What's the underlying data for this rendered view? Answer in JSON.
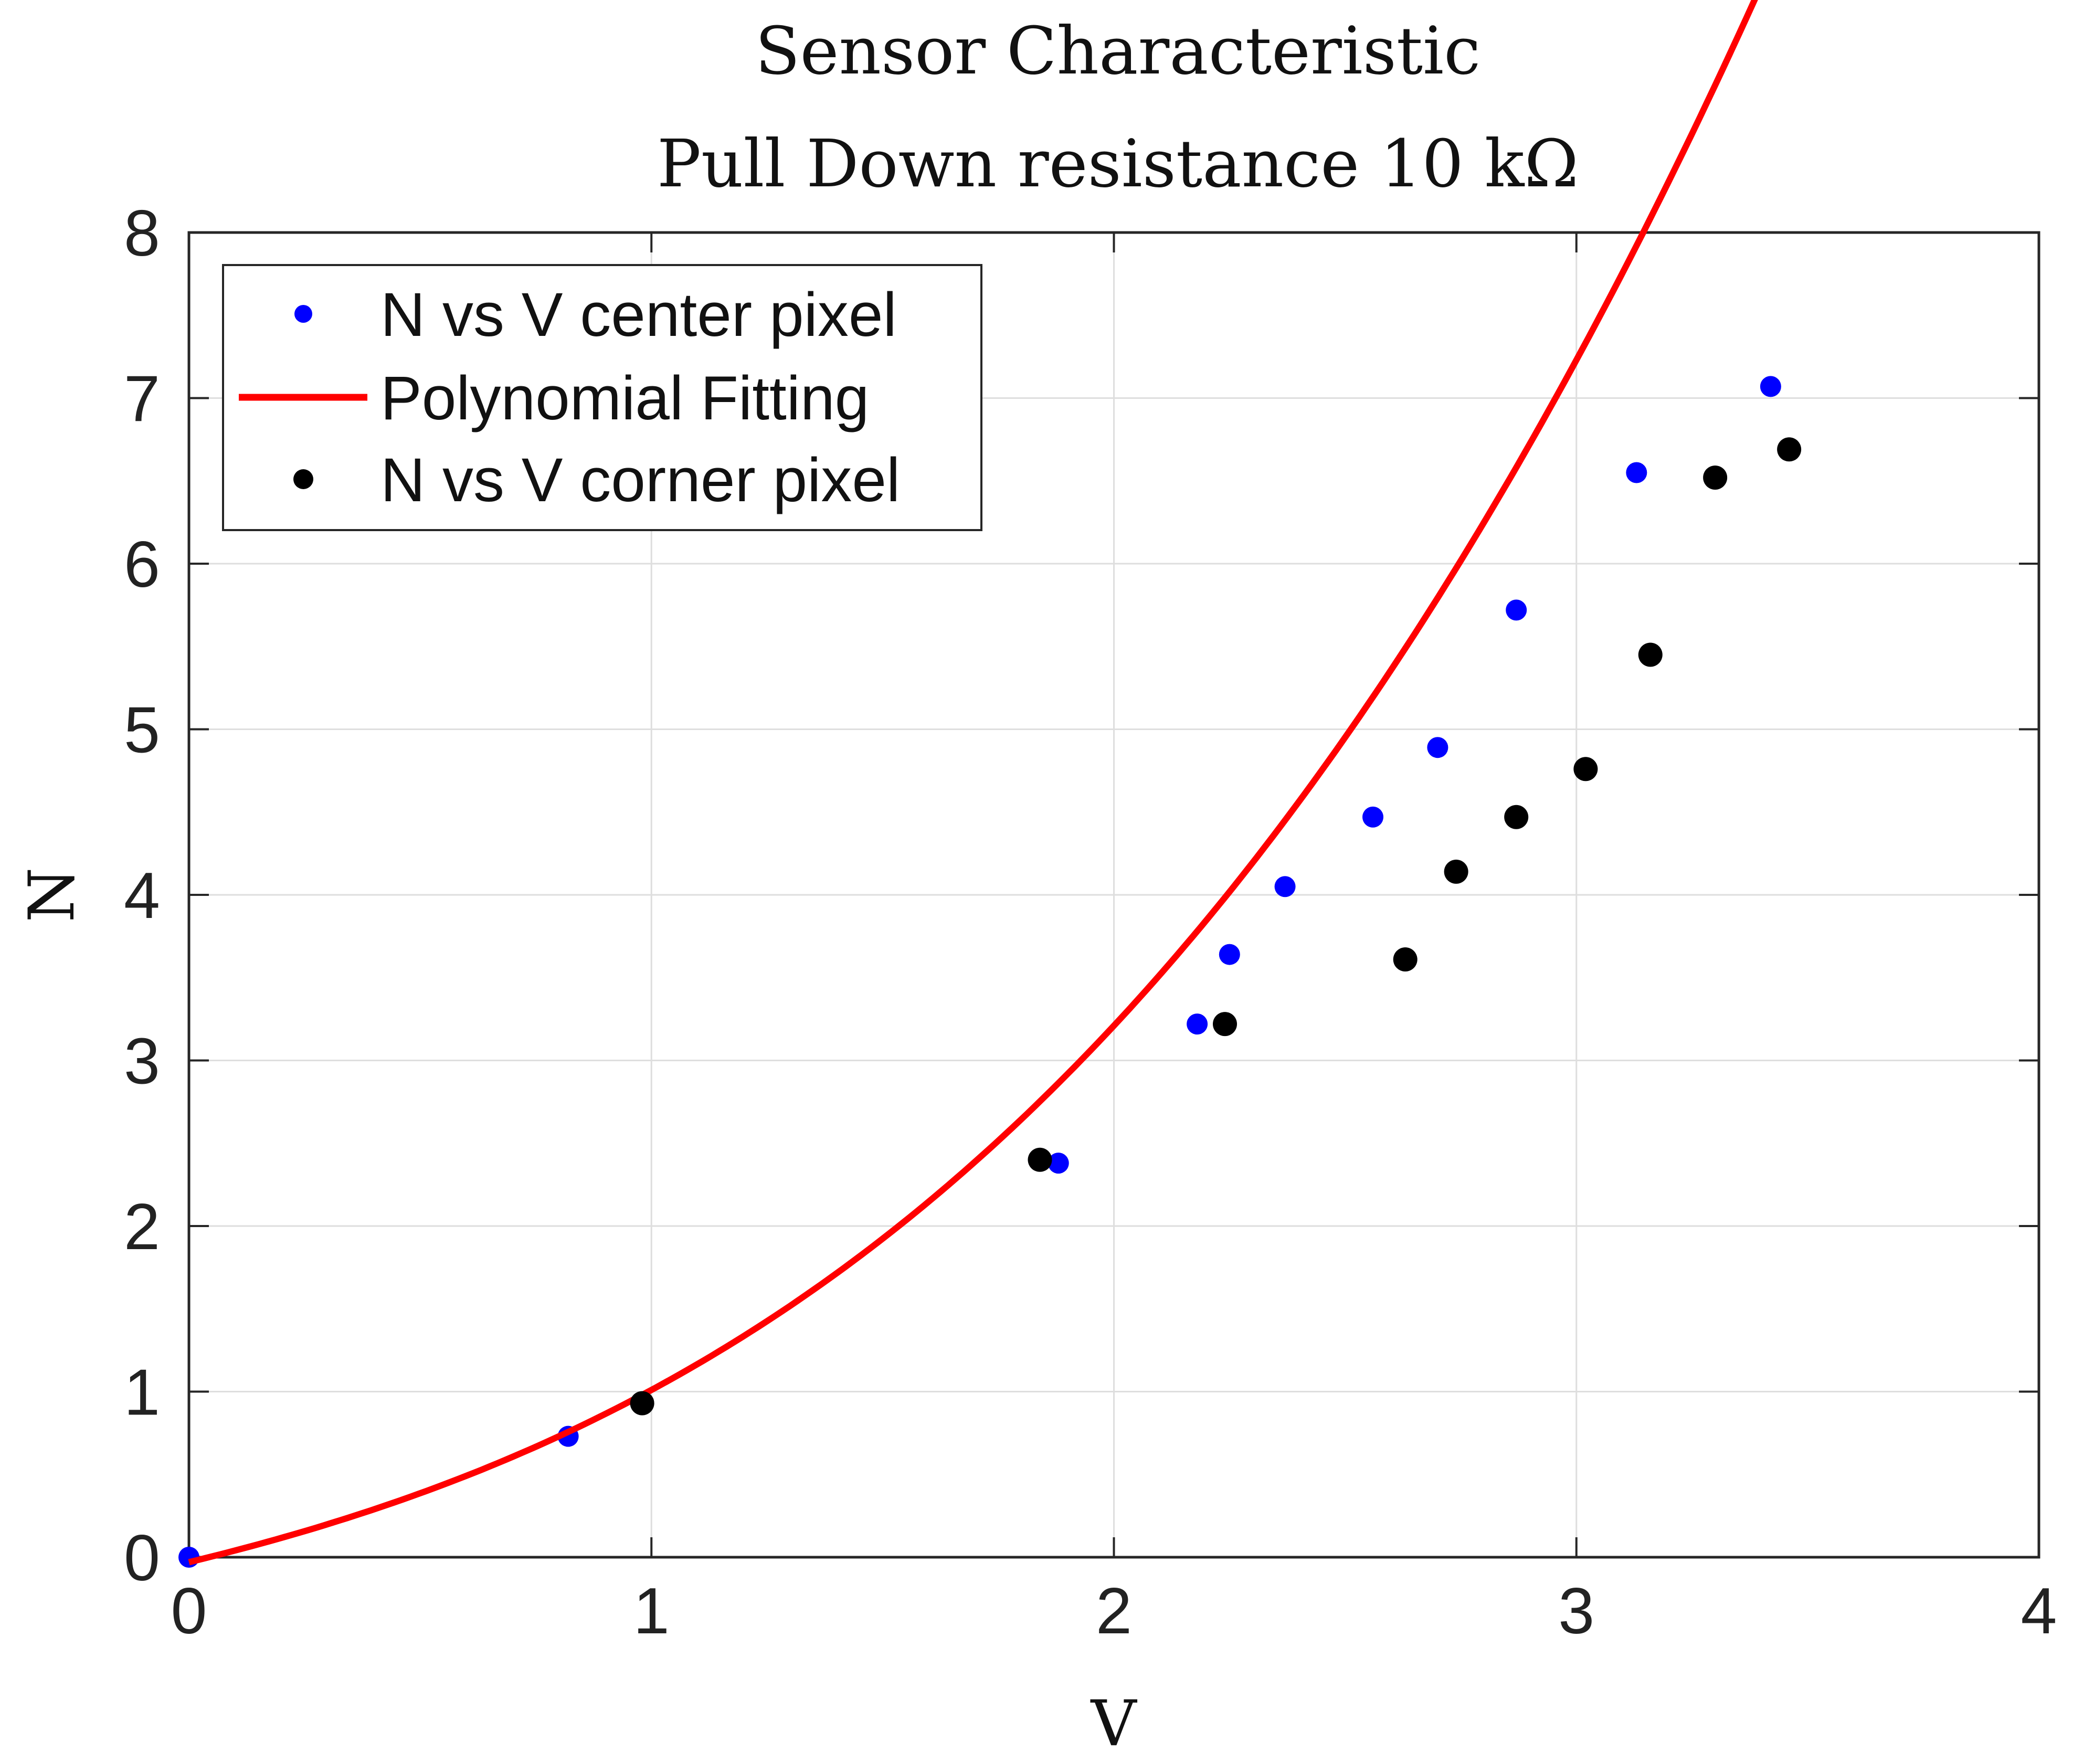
{
  "chart_data": {
    "type": "scatter",
    "title": "Sensor Characteristic",
    "subtitle": "Pull Down resistance 10 kΩ",
    "xlabel": "V",
    "ylabel": "N",
    "xlim": [
      0,
      4
    ],
    "ylim": [
      0,
      8
    ],
    "xticks": [
      0,
      1,
      2,
      3,
      4
    ],
    "yticks": [
      0,
      1,
      2,
      3,
      4,
      5,
      6,
      7,
      8
    ],
    "xtick_labels": [
      "0",
      "1",
      "2",
      "3",
      "4"
    ],
    "ytick_labels": [
      "0",
      "1",
      "2",
      "3",
      "4",
      "5",
      "6",
      "7",
      "8"
    ],
    "grid": true,
    "legend_position": "top-left",
    "series": [
      {
        "name": "N vs V center pixel",
        "kind": "markers",
        "color": "#0000ff",
        "points": [
          [
            0.0,
            0.0
          ],
          [
            0.82,
            0.73
          ],
          [
            1.88,
            2.38
          ],
          [
            2.18,
            3.22
          ],
          [
            2.25,
            3.64
          ],
          [
            2.37,
            4.05
          ],
          [
            2.56,
            4.47
          ],
          [
            2.7,
            4.89
          ],
          [
            2.87,
            5.72
          ],
          [
            3.13,
            6.55
          ],
          [
            3.42,
            7.07
          ]
        ]
      },
      {
        "name": "Polynomial Fitting",
        "kind": "line",
        "color": "#ff0000",
        "x_range": [
          0,
          3.42
        ],
        "coefficients": [
          -0.03,
          0.68,
          0.25,
          0.11
        ]
      },
      {
        "name": "N vs V corner pixel",
        "kind": "markers",
        "color": "#000000",
        "points": [
          [
            0.98,
            0.93
          ],
          [
            1.84,
            2.4
          ],
          [
            2.24,
            3.22
          ],
          [
            2.63,
            3.61
          ],
          [
            2.74,
            4.14
          ],
          [
            2.87,
            4.47
          ],
          [
            3.02,
            4.76
          ],
          [
            3.16,
            5.45
          ],
          [
            3.3,
            6.52
          ],
          [
            3.46,
            6.69
          ]
        ]
      }
    ]
  }
}
